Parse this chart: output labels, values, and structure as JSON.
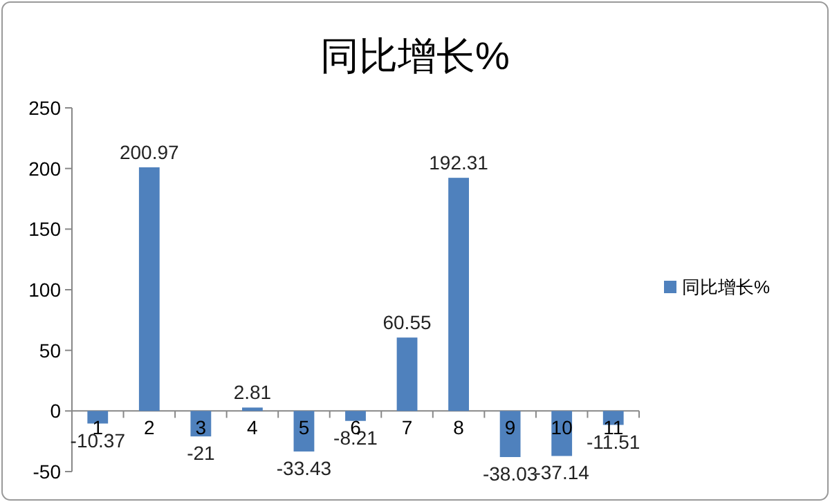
{
  "chart_data": {
    "type": "bar",
    "title": "同比增长%",
    "categories": [
      "1",
      "2",
      "3",
      "4",
      "5",
      "6",
      "7",
      "8",
      "9",
      "10",
      "11"
    ],
    "series": [
      {
        "name": "同比增长%",
        "color": "#4f81bd",
        "values": [
          -10.37,
          200.97,
          -21,
          2.81,
          -33.43,
          -8.21,
          60.55,
          192.31,
          -38.03,
          -37.14,
          -11.51
        ]
      }
    ],
    "ylim": [
      -50,
      250
    ],
    "yticks": [
      -50,
      0,
      50,
      100,
      150,
      200,
      250
    ],
    "data_labels": true,
    "legend": "right",
    "grid": false
  }
}
